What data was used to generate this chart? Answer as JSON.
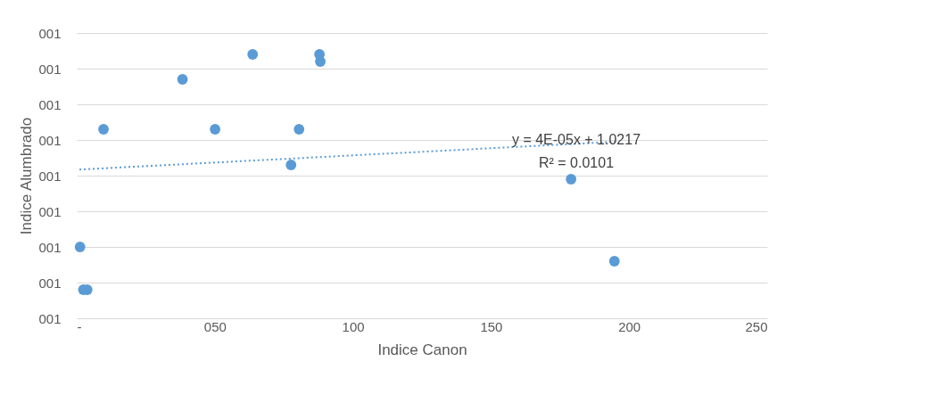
{
  "chart_data": {
    "type": "scatter",
    "xlabel": "Indice Canon",
    "ylabel": "Indice Alumbrado",
    "series": [
      {
        "color": "#5b9bd5",
        "marker": "circle",
        "x": [
          1.2,
          2.4,
          3.8,
          9.7,
          38.3,
          50.1,
          63.7,
          77.6,
          80.5,
          87.9,
          88.2,
          179,
          194.7
        ],
        "values": [
          1.0,
          0.988,
          0.988,
          1.033,
          1.047,
          1.033,
          1.054,
          1.023,
          1.033,
          1.054,
          1.052,
          1.019,
          0.996
        ]
      },
      {
        "type": "line",
        "color": "#5b9bd5",
        "line_style": "dotted",
        "x": [
          1,
          195
        ],
        "values": [
          1.0217,
          1.0295
        ]
      }
    ],
    "annotations": [
      "y = 4E-05x + 1.0217",
      "R² = 0.0101"
    ],
    "xlim": [
      0,
      250
    ],
    "ylim": [
      0.98,
      1.06
    ],
    "xticks": [
      {
        "value": 0,
        "label": "-"
      },
      {
        "value": 50,
        "label": "050"
      },
      100,
      150,
      200,
      250
    ],
    "yticks": [
      {
        "value": 0.98,
        "label": "001"
      },
      {
        "value": 0.99,
        "label": "001"
      },
      {
        "value": 1.0,
        "label": "001"
      },
      {
        "value": 1.01,
        "label": "001"
      },
      {
        "value": 1.02,
        "label": "001"
      },
      {
        "value": 1.03,
        "label": "001"
      },
      {
        "value": 1.04,
        "label": "001"
      },
      {
        "value": 1.05,
        "label": "001"
      },
      {
        "value": 1.06,
        "label": "001"
      }
    ],
    "grid": "y"
  }
}
